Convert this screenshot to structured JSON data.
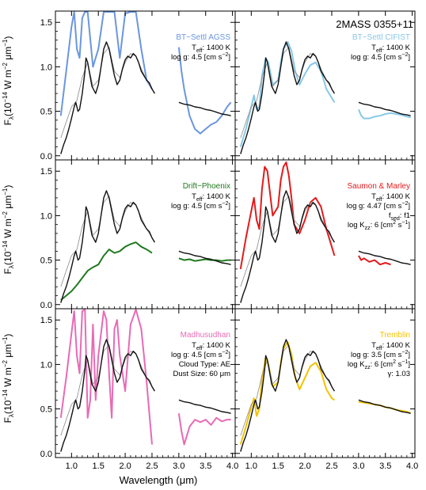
{
  "figure": {
    "ylabel": "F",
    "ylabel_sub": "λ",
    "ylabel_units": "(10",
    "ylabel_exp": "−14",
    "ylabel_tail": " W m",
    "ylabel_exp2": "−2",
    "ylabel_tail2": " μm",
    "ylabel_exp3": "−1",
    "ylabel_close": ")",
    "xlabel": "Wavelength (μm)",
    "object_name": "2MASS 0355+11"
  },
  "colors": {
    "observed": "#111111",
    "photometry_smooth": "#8a8a8a",
    "axis": "#000000"
  },
  "chart_data": [
    {
      "type": "line",
      "id": "bt-settl-agss",
      "legend": "BT−Settl AGSS",
      "color": "#6a96e0",
      "params": [
        {
          "label": "T",
          "sub": "eff",
          "value": ": 1400 K"
        },
        {
          "label": "log g: 4.5 [cm s",
          "sup": "−2",
          "tail": "]"
        }
      ],
      "xlim": [
        0.7,
        4.05
      ],
      "ylim": [
        -0.02,
        1.6
      ],
      "model_segments": [
        {
          "x": [
            0.8,
            0.9,
            1.0,
            1.05,
            1.1,
            1.15,
            1.2,
            1.25,
            1.3,
            1.4,
            1.5,
            1.6,
            1.7,
            1.8,
            1.9,
            2.0,
            2.1,
            2.2,
            2.3,
            2.4,
            2.5
          ],
          "y": [
            0.45,
            0.95,
            1.45,
            1.75,
            1.2,
            1.1,
            1.55,
            1.75,
            1.75,
            1.0,
            1.2,
            1.7,
            1.9,
            1.8,
            1.1,
            1.6,
            1.75,
            1.7,
            1.2,
            0.85,
            0.75
          ]
        },
        {
          "x": [
            3.0,
            3.05,
            3.1,
            3.2,
            3.3,
            3.4,
            3.5,
            3.6,
            3.7,
            3.8,
            3.9,
            3.97
          ],
          "y": [
            1.22,
            0.95,
            0.75,
            0.45,
            0.3,
            0.25,
            0.3,
            0.35,
            0.38,
            0.45,
            0.55,
            0.6
          ]
        }
      ]
    },
    {
      "type": "line",
      "id": "bt-settl-cifist",
      "legend": "BT−Settl CIFIST",
      "color": "#87c8e6",
      "params": [
        {
          "label": "T",
          "sub": "eff",
          "value": ": 1400 K"
        },
        {
          "label": "log g: 4.5 [cm s",
          "sup": "−2",
          "tail": "]"
        }
      ],
      "xlim": [
        0.7,
        4.05
      ],
      "ylim": [
        -0.02,
        1.6
      ],
      "model_segments": [
        {
          "x": [
            0.8,
            0.9,
            1.0,
            1.05,
            1.1,
            1.15,
            1.2,
            1.27,
            1.32,
            1.4,
            1.5,
            1.55,
            1.6,
            1.68,
            1.75,
            1.82,
            1.9,
            2.0,
            2.1,
            2.2,
            2.3,
            2.4,
            2.5,
            2.55
          ],
          "y": [
            0.1,
            0.3,
            0.55,
            0.68,
            0.52,
            0.55,
            0.9,
            1.1,
            1.05,
            0.8,
            0.85,
            1.05,
            1.2,
            1.28,
            1.18,
            0.95,
            0.8,
            0.92,
            1.02,
            1.05,
            0.95,
            0.75,
            0.65,
            0.6
          ]
        },
        {
          "x": [
            3.0,
            3.05,
            3.1,
            3.2,
            3.3,
            3.4,
            3.5,
            3.6,
            3.7,
            3.8,
            3.9,
            3.97
          ],
          "y": [
            0.52,
            0.45,
            0.42,
            0.42,
            0.44,
            0.45,
            0.47,
            0.48,
            0.47,
            0.46,
            0.44,
            0.43
          ]
        }
      ]
    },
    {
      "type": "line",
      "id": "drift-phoenix",
      "legend": "Drift−Phoenix",
      "color": "#1f7a1f",
      "params": [
        {
          "label": "T",
          "sub": "eff",
          "value": ": 1400 K"
        },
        {
          "label": "log g: 4.5 [cm s",
          "sup": "−2",
          "tail": "]"
        }
      ],
      "xlim": [
        0.7,
        4.05
      ],
      "ylim": [
        -0.02,
        1.6
      ],
      "model_segments": [
        {
          "x": [
            0.8,
            0.9,
            1.0,
            1.1,
            1.2,
            1.3,
            1.4,
            1.5,
            1.6,
            1.7,
            1.8,
            1.9,
            2.0,
            2.1,
            2.2,
            2.3,
            2.4,
            2.5
          ],
          "y": [
            0.05,
            0.1,
            0.15,
            0.22,
            0.3,
            0.38,
            0.42,
            0.45,
            0.55,
            0.62,
            0.58,
            0.6,
            0.65,
            0.68,
            0.7,
            0.65,
            0.62,
            0.58
          ]
        },
        {
          "x": [
            3.0,
            3.1,
            3.2,
            3.3,
            3.4,
            3.5,
            3.6,
            3.7,
            3.8,
            3.9,
            3.97
          ],
          "y": [
            0.52,
            0.5,
            0.51,
            0.49,
            0.5,
            0.51,
            0.5,
            0.5,
            0.49,
            0.5,
            0.5
          ]
        }
      ]
    },
    {
      "type": "line",
      "id": "saumon-marley",
      "legend": "Saumon & Marley",
      "color": "#e41a1c",
      "params": [
        {
          "label": "T",
          "sub": "eff",
          "value": ": 1400 K"
        },
        {
          "label": "log g: 4.47 [cm s",
          "sup": "−2",
          "tail": "]"
        },
        {
          "label": "f",
          "sub": "sed",
          "value": ": f1"
        },
        {
          "label": "log K",
          "sub": "zz",
          "value": ": 6 [cm",
          "sup": "2",
          "tail": " s",
          "sup2": "−1",
          "tail2": "]"
        }
      ],
      "xlim": [
        0.7,
        4.05
      ],
      "ylim": [
        -0.02,
        1.6
      ],
      "model_segments": [
        {
          "x": [
            0.8,
            0.9,
            1.0,
            1.05,
            1.1,
            1.15,
            1.2,
            1.25,
            1.3,
            1.4,
            1.5,
            1.55,
            1.6,
            1.65,
            1.7,
            1.75,
            1.8,
            1.9,
            2.0,
            2.1,
            2.2,
            2.3,
            2.4,
            2.5,
            2.55
          ],
          "y": [
            0.4,
            0.75,
            1.05,
            1.2,
            0.95,
            0.85,
            1.3,
            1.55,
            1.5,
            1.0,
            1.1,
            1.4,
            1.55,
            1.6,
            1.45,
            1.2,
            0.9,
            0.8,
            0.95,
            1.15,
            1.2,
            1.1,
            0.85,
            0.65,
            0.55
          ]
        },
        {
          "x": [
            3.0,
            3.05,
            3.1,
            3.2,
            3.3,
            3.4,
            3.5,
            3.6
          ],
          "y": [
            0.55,
            0.5,
            0.52,
            0.48,
            0.5,
            0.45,
            0.47,
            0.45
          ]
        }
      ]
    },
    {
      "type": "line",
      "id": "madhusudhan",
      "legend": "Madhusudhan",
      "color": "#e86ab5",
      "params": [
        {
          "label": "T",
          "sub": "eff",
          "value": ": 1400 K"
        },
        {
          "label": "log g: 4.5 [cm s",
          "sup": "−2",
          "tail": "]"
        },
        {
          "label": "Cloud Type: AE"
        },
        {
          "label": "Dust Size: 60 μm"
        }
      ],
      "xlim": [
        0.7,
        4.05
      ],
      "ylim": [
        -0.02,
        1.6
      ],
      "model_segments": [
        {
          "x": [
            0.8,
            0.9,
            1.0,
            1.05,
            1.1,
            1.15,
            1.2,
            1.25,
            1.3,
            1.35,
            1.4,
            1.45,
            1.5,
            1.6,
            1.65,
            1.7,
            1.75,
            1.8,
            1.85,
            1.9,
            2.0,
            2.1,
            2.2,
            2.3,
            2.4,
            2.5
          ],
          "y": [
            0.4,
            0.85,
            1.35,
            1.6,
            1.1,
            0.9,
            1.6,
            1.65,
            0.4,
            0.6,
            1.45,
            0.6,
            1.1,
            1.6,
            1.5,
            0.9,
            0.4,
            1.4,
            1.5,
            1.1,
            0.7,
            1.45,
            1.65,
            1.4,
            0.8,
            0.1
          ]
        },
        {
          "x": [
            3.0,
            3.05,
            3.1,
            3.2,
            3.3,
            3.4,
            3.5,
            3.6,
            3.7,
            3.8,
            3.9,
            3.97
          ],
          "y": [
            0.45,
            0.25,
            0.1,
            0.3,
            0.38,
            0.35,
            0.38,
            0.32,
            0.4,
            0.36,
            0.38,
            0.38
          ]
        }
      ]
    },
    {
      "type": "line",
      "id": "tremblin",
      "legend": "Tremblin",
      "color": "#f2c300",
      "params": [
        {
          "label": "T",
          "sub": "eff",
          "value": ": 1400 K"
        },
        {
          "label": "log g: 3.5 [cm s",
          "sup": "−2",
          "tail": "]"
        },
        {
          "label": "log K",
          "sub": "zz",
          "value": ": 6 [cm",
          "sup": "2",
          "tail": " s",
          "sup2": "−1",
          "tail2": "]"
        },
        {
          "label": "γ: 1.03"
        }
      ],
      "xlim": [
        0.7,
        4.05
      ],
      "ylim": [
        -0.02,
        1.6
      ],
      "model_segments": [
        {
          "x": [
            0.8,
            0.9,
            1.0,
            1.05,
            1.1,
            1.15,
            1.2,
            1.27,
            1.32,
            1.4,
            1.5,
            1.55,
            1.6,
            1.68,
            1.75,
            1.82,
            1.9,
            2.0,
            2.1,
            2.2,
            2.3,
            2.4,
            2.5,
            2.55
          ],
          "y": [
            0.1,
            0.3,
            0.52,
            0.62,
            0.42,
            0.5,
            0.85,
            1.08,
            1.0,
            0.75,
            0.8,
            1.02,
            1.18,
            1.25,
            1.12,
            0.85,
            0.72,
            0.85,
            0.98,
            1.02,
            0.92,
            0.72,
            0.62,
            0.6
          ]
        },
        {
          "x": [
            3.0,
            3.1,
            3.2,
            3.3,
            3.4,
            3.5,
            3.6,
            3.7,
            3.8,
            3.9,
            3.97
          ],
          "y": [
            0.58,
            0.57,
            0.56,
            0.55,
            0.54,
            0.52,
            0.51,
            0.49,
            0.48,
            0.47,
            0.45
          ]
        }
      ]
    }
  ],
  "observed_spectrum": {
    "segments": [
      {
        "x": [
          0.8,
          0.85,
          0.9,
          0.95,
          1.0,
          1.05,
          1.08,
          1.12,
          1.15,
          1.2,
          1.25,
          1.27,
          1.3,
          1.33,
          1.38,
          1.45,
          1.5,
          1.55,
          1.6,
          1.65,
          1.7,
          1.75,
          1.8,
          1.85,
          1.9,
          1.95,
          2.0,
          2.05,
          2.1,
          2.15,
          2.2,
          2.25,
          2.3,
          2.35,
          2.4,
          2.45,
          2.5,
          2.55
        ],
        "y": [
          0.02,
          0.12,
          0.2,
          0.3,
          0.42,
          0.55,
          0.6,
          0.5,
          0.52,
          0.7,
          0.95,
          1.1,
          1.05,
          0.95,
          0.78,
          0.7,
          0.8,
          1.0,
          1.2,
          1.28,
          1.2,
          1.05,
          0.9,
          0.8,
          0.85,
          0.98,
          1.08,
          1.12,
          1.1,
          1.15,
          1.12,
          1.05,
          0.95,
          0.9,
          0.85,
          0.82,
          0.75,
          0.7
        ]
      },
      {
        "x": [
          3.0,
          3.1,
          3.2,
          3.3,
          3.4,
          3.5,
          3.6,
          3.7,
          3.8,
          3.9,
          3.97
        ],
        "y": [
          0.6,
          0.58,
          0.57,
          0.55,
          0.54,
          0.52,
          0.51,
          0.49,
          0.47,
          0.46,
          0.45
        ]
      }
    ]
  },
  "smoothed_spectrum": {
    "segments": [
      {
        "x": [
          0.8,
          0.9,
          1.0,
          1.1,
          1.2,
          1.3,
          1.4,
          1.5,
          1.6,
          1.7,
          1.8,
          1.9,
          2.0,
          2.1,
          2.2,
          2.3,
          2.4,
          2.5
        ],
        "y": [
          0.2,
          0.38,
          0.55,
          0.62,
          0.88,
          1.05,
          0.78,
          0.85,
          1.15,
          1.22,
          0.95,
          0.88,
          1.05,
          1.15,
          1.12,
          0.98,
          0.85,
          0.75
        ]
      }
    ]
  },
  "axes": {
    "x_ticks": [
      1.0,
      1.5,
      2.0,
      2.5,
      3.0,
      3.5,
      4.0
    ],
    "x_tick_labels": [
      "1.0",
      "1.5",
      "2.0",
      "2.5",
      "3.0",
      "3.5",
      "4.0"
    ],
    "y_ticks": [
      0.0,
      0.5,
      1.0,
      1.5
    ],
    "y_tick_labels": [
      "0.0",
      "0.5",
      "1.0",
      "1.5"
    ]
  }
}
